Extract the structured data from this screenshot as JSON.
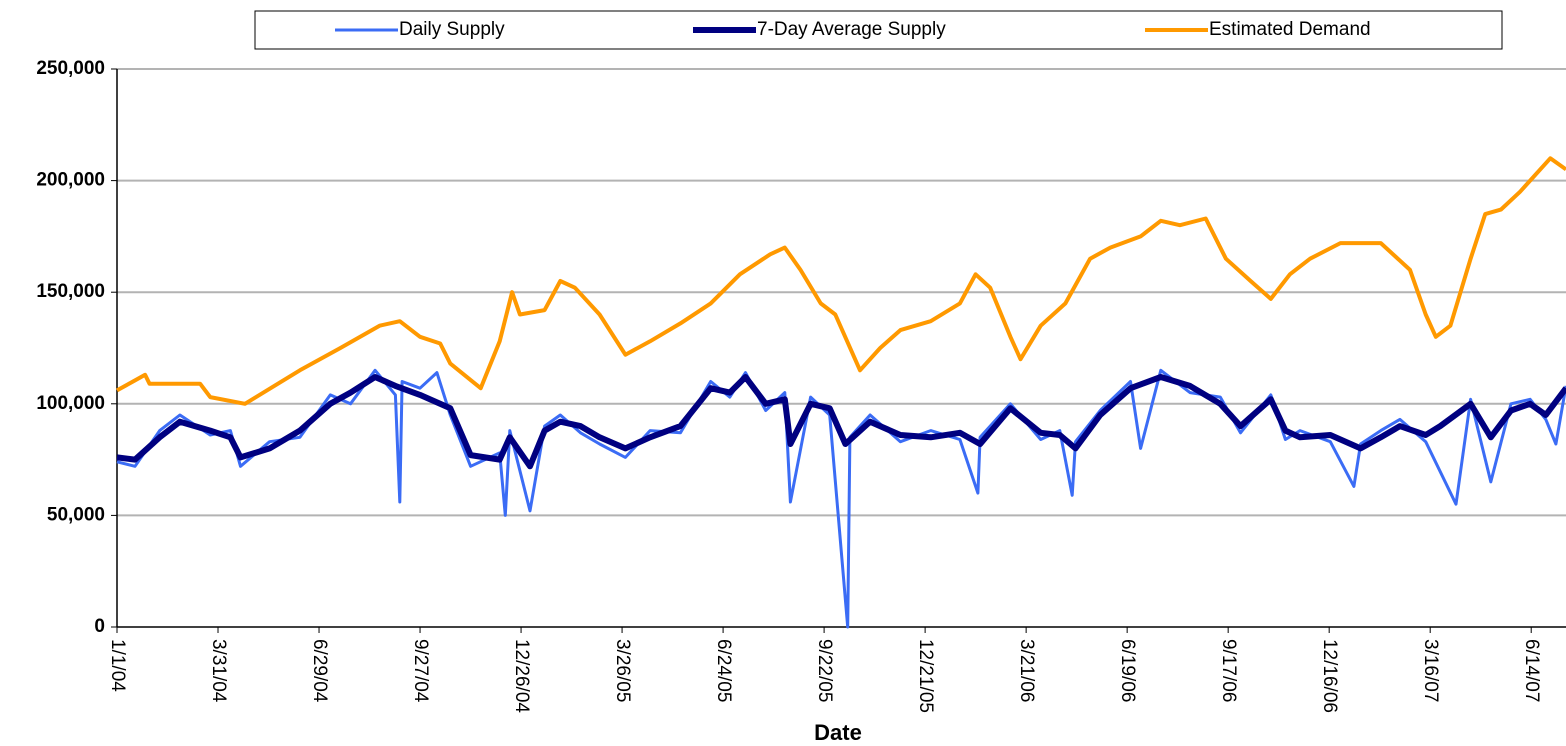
{
  "chart_data": {
    "type": "line",
    "x_axis_label": "Date",
    "ylim": [
      0,
      250000
    ],
    "yticks": [
      0,
      {
        "value": 50000,
        "label": "50,000"
      },
      {
        "value": 100000,
        "label": "100,000"
      },
      {
        "value": 150000,
        "label": "150,000"
      },
      {
        "value": 200000,
        "label": "200,000"
      },
      {
        "value": 250000,
        "label": "250,000"
      }
    ],
    "xlim": [
      "1/1/04",
      "7/15/07"
    ],
    "xticks": [
      "1/1/04",
      "3/31/04",
      "6/29/04",
      "9/27/04",
      "12/26/04",
      "3/26/05",
      "6/24/05",
      "9/22/05",
      "12/21/05",
      "3/21/06",
      "6/19/06",
      "9/17/06",
      "12/16/06",
      "3/16/07",
      "6/14/07"
    ],
    "grid": true,
    "legend": "top",
    "series": [
      {
        "name": "Daily Supply",
        "color": "#3b6cf5",
        "width": 3,
        "x": [
          "1/1/04",
          "1/17/04",
          "2/8/04",
          "2/26/04",
          "3/24/04",
          "4/11/04",
          "4/20/04",
          "5/16/04",
          "6/12/04",
          "7/9/04",
          "7/27/04",
          "8/18/04",
          "9/5/04",
          "9/9/04",
          "9/11/04",
          "9/27/04",
          "10/12/04",
          "10/24/04",
          "11/11/04",
          "12/7/04",
          "12/12/04",
          "12/16/04",
          "1/3/05",
          "1/16/05",
          "1/30/05",
          "2/17/05",
          "3/6/05",
          "3/29/05",
          "4/20/05",
          "5/17/05",
          "6/13/05",
          "6/30/05",
          "7/14/05",
          "8/1/05",
          "8/18/05",
          "8/23/05",
          "9/10/05",
          "9/27/05",
          "10/13/05",
          "10/15/05",
          "11/2/05",
          "11/29/05",
          "12/26/05",
          "1/21/06",
          "2/6/06",
          "2/8/06",
          "3/7/06",
          "4/3/06",
          "4/20/06",
          "5/1/06",
          "5/4/06",
          "5/26/06",
          "6/22/06",
          "7/1/06",
          "7/19/06",
          "8/14/06",
          "9/10/06",
          "9/28/06",
          "10/25/06",
          "11/7/06",
          "11/20/06",
          "12/17/06",
          "1/7/07",
          "1/13/07",
          "1/31/07",
          "2/17/07",
          "3/12/07",
          "4/8/07",
          "4/21/07",
          "5/9/07",
          "5/27/07",
          "6/13/07",
          "6/27/07",
          "7/6/07",
          "7/15/07"
        ],
        "values": [
          74000,
          72000,
          88000,
          95000,
          86000,
          88000,
          72000,
          83000,
          85000,
          104000,
          100000,
          115000,
          104000,
          56000,
          110000,
          107000,
          114000,
          95000,
          72000,
          78000,
          50000,
          88000,
          52000,
          90000,
          95000,
          87000,
          82000,
          76000,
          88000,
          87000,
          110000,
          103000,
          114000,
          97000,
          105000,
          56000,
          103000,
          95000,
          0,
          85000,
          95000,
          83000,
          88000,
          84000,
          60000,
          85000,
          100000,
          84000,
          88000,
          59000,
          83000,
          97000,
          110000,
          80000,
          115000,
          105000,
          103000,
          87000,
          104000,
          84000,
          88000,
          83000,
          63000,
          82000,
          88000,
          93000,
          83000,
          55000,
          102000,
          65000,
          100000,
          102000,
          93000,
          82000,
          108000
        ]
      },
      {
        "name": "7-Day Average Supply",
        "color": "#000080",
        "width": 6,
        "x": [
          "1/1/04",
          "1/17/04",
          "2/8/04",
          "2/26/04",
          "3/24/04",
          "4/11/04",
          "4/20/04",
          "5/16/04",
          "6/12/04",
          "7/9/04",
          "7/27/04",
          "8/18/04",
          "9/5/04",
          "9/27/04",
          "10/24/04",
          "11/11/04",
          "12/7/04",
          "12/16/04",
          "1/3/05",
          "1/16/05",
          "1/30/05",
          "2/17/05",
          "3/6/05",
          "3/29/05",
          "4/20/05",
          "5/17/05",
          "6/13/05",
          "6/30/05",
          "7/14/05",
          "8/1/05",
          "8/18/05",
          "8/23/05",
          "9/10/05",
          "9/27/05",
          "10/11/05",
          "11/2/05",
          "11/29/05",
          "12/26/05",
          "1/21/06",
          "2/8/06",
          "3/7/06",
          "4/3/06",
          "4/20/06",
          "5/4/06",
          "5/26/06",
          "6/22/06",
          "7/19/06",
          "8/14/06",
          "9/10/06",
          "9/28/06",
          "10/25/06",
          "11/7/06",
          "11/20/06",
          "12/17/06",
          "1/13/07",
          "1/31/07",
          "2/17/07",
          "3/12/07",
          "3/25/07",
          "4/21/07",
          "5/9/07",
          "5/27/07",
          "6/13/07",
          "6/27/07",
          "7/15/07"
        ],
        "values": [
          76000,
          75000,
          85000,
          92000,
          88000,
          85000,
          76000,
          80000,
          88000,
          100000,
          105000,
          112000,
          108000,
          104000,
          98000,
          77000,
          75000,
          85000,
          72000,
          88000,
          92000,
          90000,
          85000,
          80000,
          85000,
          90000,
          107000,
          105000,
          112000,
          100000,
          102000,
          82000,
          100000,
          98000,
          82000,
          92000,
          86000,
          85000,
          87000,
          82000,
          98000,
          87000,
          86000,
          80000,
          95000,
          107000,
          112000,
          108000,
          100000,
          90000,
          102000,
          88000,
          85000,
          86000,
          80000,
          85000,
          90000,
          86000,
          90000,
          100000,
          85000,
          97000,
          100000,
          95000,
          107000
        ]
      },
      {
        "name": "Estimated Demand",
        "color": "#ff9900",
        "width": 4,
        "x": [
          "1/1/04",
          "1/26/04",
          "1/30/04",
          "3/15/04",
          "3/24/04",
          "4/24/04",
          "6/12/04",
          "7/18/04",
          "8/22/04",
          "9/9/04",
          "9/27/04",
          "10/15/04",
          "10/24/04",
          "11/20/04",
          "12/7/04",
          "12/18/04",
          "12/25/04",
          "1/16/05",
          "1/30/05",
          "2/12/05",
          "3/6/05",
          "3/29/05",
          "4/20/05",
          "5/17/05",
          "6/13/05",
          "7/9/05",
          "8/5/05",
          "8/18/05",
          "9/1/05",
          "9/19/05",
          "10/2/05",
          "10/24/05",
          "11/11/05",
          "11/29/05",
          "12/26/05",
          "1/21/06",
          "2/4/06",
          "2/17/06",
          "3/7/06",
          "3/16/06",
          "4/3/06",
          "4/25/06",
          "5/17/06",
          "6/4/06",
          "7/1/06",
          "7/19/06",
          "8/5/06",
          "8/28/06",
          "9/15/06",
          "10/7/06",
          "10/25/06",
          "11/11/06",
          "11/29/06",
          "12/26/06",
          "1/31/07",
          "2/26/07",
          "3/12/07",
          "3/21/07",
          "4/3/07",
          "4/21/07",
          "5/4/07",
          "5/18/07",
          "6/4/07",
          "7/1/07",
          "7/15/07"
        ],
        "values": [
          106000,
          113000,
          109000,
          109000,
          103000,
          100000,
          115000,
          125000,
          135000,
          137000,
          130000,
          127000,
          118000,
          107000,
          128000,
          150000,
          140000,
          142000,
          155000,
          152000,
          140000,
          122000,
          128000,
          136000,
          145000,
          158000,
          167000,
          170000,
          160000,
          145000,
          140000,
          115000,
          125000,
          133000,
          137000,
          145000,
          158000,
          152000,
          130000,
          120000,
          135000,
          145000,
          165000,
          170000,
          175000,
          182000,
          180000,
          183000,
          165000,
          155000,
          147000,
          158000,
          165000,
          172000,
          172000,
          160000,
          140000,
          130000,
          135000,
          165000,
          185000,
          187000,
          195000,
          210000,
          205000
        ]
      }
    ],
    "draw_order": [
      2,
      0,
      1
    ]
  }
}
